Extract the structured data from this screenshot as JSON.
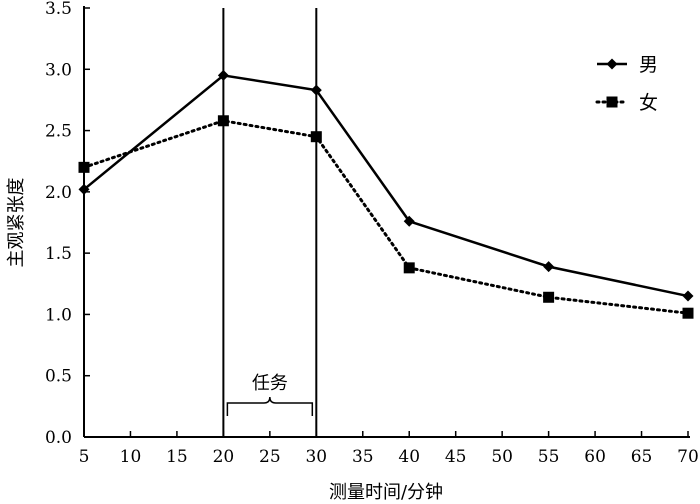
{
  "chart_data": {
    "type": "line",
    "title": "",
    "xlabel": "测量时间/分钟",
    "ylabel": "主观紧张度",
    "xlim": [
      5,
      70
    ],
    "ylim": [
      0,
      3.5
    ],
    "xticks": [
      5,
      10,
      15,
      20,
      25,
      30,
      35,
      40,
      45,
      50,
      55,
      60,
      65,
      70
    ],
    "yticks": [
      "0.0",
      "0.5",
      "1.0",
      "1.5",
      "2.0",
      "2.5",
      "3.0",
      "3.5"
    ],
    "grid": false,
    "legend_position": "top-right",
    "series": [
      {
        "name": "男",
        "style": "solid",
        "marker": "diamond",
        "color": "#000000",
        "x": [
          5,
          20,
          30,
          40,
          55,
          70
        ],
        "y": [
          2.02,
          2.95,
          2.83,
          1.76,
          1.39,
          1.15
        ]
      },
      {
        "name": "女",
        "style": "dotted",
        "marker": "square",
        "color": "#000000",
        "x": [
          5,
          20,
          30,
          40,
          55,
          70
        ],
        "y": [
          2.2,
          2.58,
          2.45,
          1.38,
          1.14,
          1.01
        ]
      }
    ],
    "annotations": [
      {
        "type": "vline",
        "x": 20
      },
      {
        "type": "vline",
        "x": 30
      },
      {
        "type": "bracket",
        "x_start": 20,
        "x_end": 30,
        "label": "任务"
      }
    ]
  }
}
